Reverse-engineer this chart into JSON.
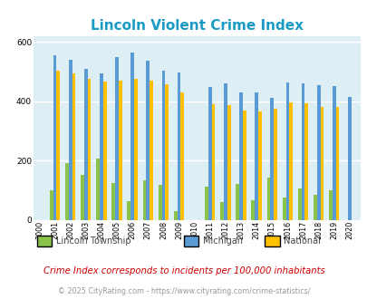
{
  "title": "Lincoln Violent Crime Index",
  "years": [
    2000,
    2001,
    2002,
    2003,
    2004,
    2005,
    2006,
    2007,
    2008,
    2009,
    2010,
    2011,
    2012,
    2013,
    2014,
    2015,
    2016,
    2017,
    2018,
    2019,
    2020
  ],
  "lincoln": [
    0,
    100,
    190,
    150,
    205,
    125,
    62,
    132,
    118,
    30,
    0,
    112,
    60,
    120,
    65,
    143,
    75,
    105,
    85,
    100,
    0
  ],
  "michigan": [
    0,
    555,
    538,
    510,
    495,
    550,
    563,
    535,
    502,
    498,
    0,
    448,
    460,
    430,
    430,
    412,
    463,
    460,
    453,
    450,
    415
  ],
  "national": [
    0,
    504,
    495,
    475,
    465,
    470,
    474,
    468,
    458,
    430,
    0,
    389,
    387,
    368,
    365,
    373,
    397,
    394,
    381,
    379,
    0
  ],
  "lincoln_color": "#8bc34a",
  "michigan_color": "#5b9bd5",
  "national_color": "#ffc000",
  "bg_color": "#deeef5",
  "fig_bg": "#ffffff",
  "title_color": "#1a9bc4",
  "subtitle": "Crime Index corresponds to incidents per 100,000 inhabitants",
  "footer": "© 2025 CityRating.com - https://www.cityrating.com/crime-statistics/",
  "ylim": [
    0,
    620
  ],
  "yticks": [
    0,
    200,
    400,
    600
  ],
  "grid_color": "#ffffff",
  "subtitle_color": "#cc0000",
  "footer_color": "#999999"
}
